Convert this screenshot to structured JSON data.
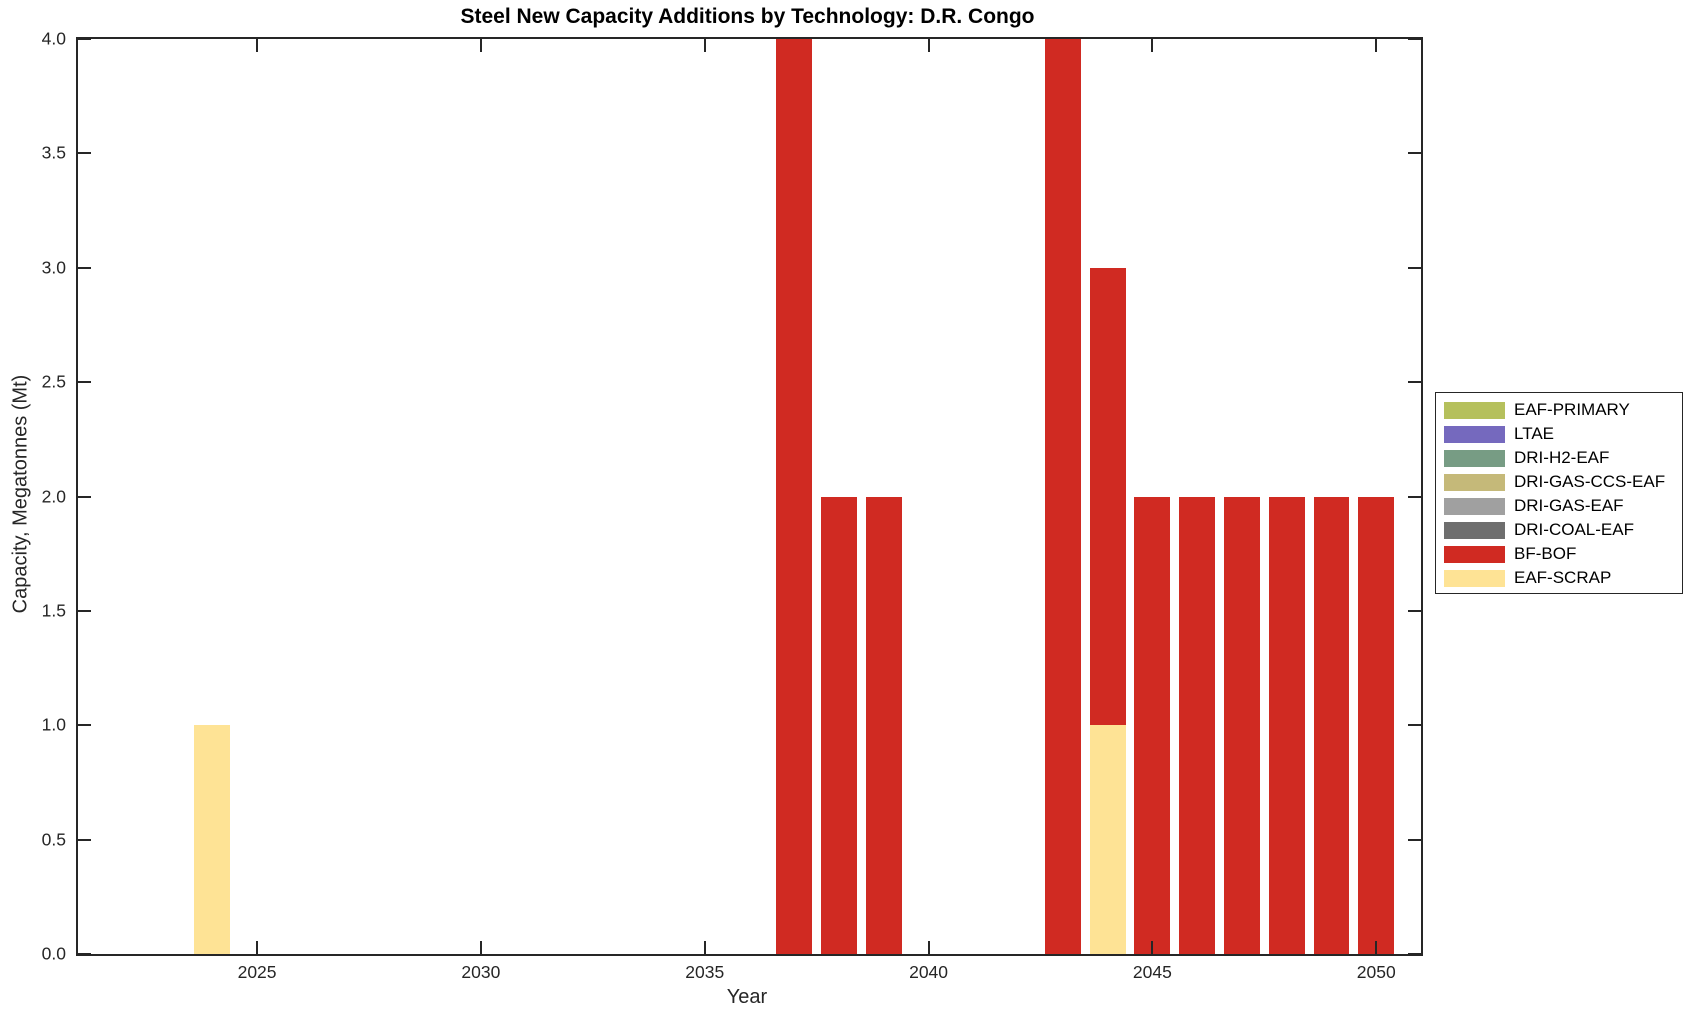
{
  "title": "Steel New Capacity Additions by Technology: D.R. Congo",
  "axes": {
    "xlabel": "Year",
    "ylabel": "Capacity, Megatonnes (Mt)"
  },
  "chart_data": {
    "type": "bar",
    "stacked": true,
    "title": "Steel New Capacity Additions by Technology: D.R. Congo",
    "xlabel": "Year",
    "ylabel": "Capacity, Megatonnes (Mt)",
    "xlim": [
      2021,
      2051
    ],
    "ylim": [
      0,
      4
    ],
    "x_ticks": [
      2025,
      2030,
      2035,
      2040,
      2045,
      2050
    ],
    "x_tick_labels": [
      "2025",
      "2030",
      "2035",
      "2040",
      "2045",
      "2050"
    ],
    "y_ticks": [
      0,
      0.5,
      1,
      1.5,
      2,
      2.5,
      3,
      3.5,
      4
    ],
    "y_tick_labels": [
      "0.0",
      "0.5",
      "1.0",
      "1.5",
      "2.0",
      "2.5",
      "3.0",
      "3.5",
      "4.0"
    ],
    "bar_width_years": 0.8,
    "grid": false,
    "legend_position": "right-outside",
    "series_colors": {
      "EAF-PRIMARY": "#b5c05c",
      "LTAE": "#7569be",
      "DRI-H2-EAF": "#779c84",
      "DRI-GAS-CCS-EAF": "#c5b979",
      "DRI-GAS-EAF": "#a0a0a0",
      "DRI-COAL-EAF": "#6e6e6e",
      "BF-BOF": "#d02a22",
      "EAF-SCRAP": "#fee395"
    },
    "bars": [
      {
        "year": 2024,
        "segments": [
          {
            "series": "EAF-SCRAP",
            "value": 1.0
          }
        ]
      },
      {
        "year": 2037,
        "segments": [
          {
            "series": "BF-BOF",
            "value": 4.0
          }
        ]
      },
      {
        "year": 2038,
        "segments": [
          {
            "series": "BF-BOF",
            "value": 2.0
          }
        ]
      },
      {
        "year": 2039,
        "segments": [
          {
            "series": "BF-BOF",
            "value": 2.0
          }
        ]
      },
      {
        "year": 2043,
        "segments": [
          {
            "series": "BF-BOF",
            "value": 4.0
          }
        ]
      },
      {
        "year": 2044,
        "segments": [
          {
            "series": "EAF-SCRAP",
            "value": 1.0
          },
          {
            "series": "BF-BOF",
            "value": 2.0
          }
        ]
      },
      {
        "year": 2045,
        "segments": [
          {
            "series": "BF-BOF",
            "value": 2.0
          }
        ]
      },
      {
        "year": 2046,
        "segments": [
          {
            "series": "BF-BOF",
            "value": 2.0
          }
        ]
      },
      {
        "year": 2047,
        "segments": [
          {
            "series": "BF-BOF",
            "value": 2.0
          }
        ]
      },
      {
        "year": 2048,
        "segments": [
          {
            "series": "BF-BOF",
            "value": 2.0
          }
        ]
      },
      {
        "year": 2049,
        "segments": [
          {
            "series": "BF-BOF",
            "value": 2.0
          }
        ]
      },
      {
        "year": 2050,
        "segments": [
          {
            "series": "BF-BOF",
            "value": 2.0
          }
        ]
      }
    ]
  },
  "legend": {
    "entries": [
      {
        "label": "EAF-PRIMARY",
        "color": "#b5c05c"
      },
      {
        "label": "LTAE",
        "color": "#7569be"
      },
      {
        "label": "DRI-H2-EAF",
        "color": "#779c84"
      },
      {
        "label": "DRI-GAS-CCS-EAF",
        "color": "#c5b979"
      },
      {
        "label": "DRI-GAS-EAF",
        "color": "#a0a0a0"
      },
      {
        "label": "DRI-COAL-EAF",
        "color": "#6e6e6e"
      },
      {
        "label": "BF-BOF",
        "color": "#d02a22"
      },
      {
        "label": "EAF-SCRAP",
        "color": "#fee395"
      }
    ]
  },
  "style": {
    "axis_color": "#262626",
    "title_color": "#000000",
    "background": "#ffffff"
  }
}
